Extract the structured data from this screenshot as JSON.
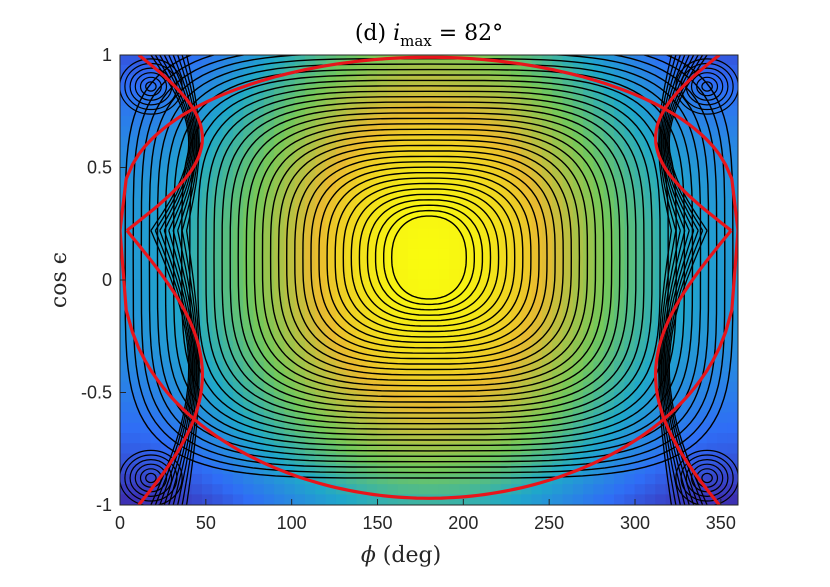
{
  "chart_data": {
    "type": "heatmap",
    "subtype": "contour",
    "title": "(d) i_max = 82°",
    "title_parts": {
      "prefix": "(d) ",
      "var": "i",
      "sub": "max",
      "suffix": " = 82°"
    },
    "xlabel": "ϕ (deg)",
    "xlabel_parts": {
      "symbol": "ϕ",
      "unit": " (deg)"
    },
    "ylabel": "cos ϵ",
    "xlim": [
      0,
      360
    ],
    "ylim": [
      -1,
      1
    ],
    "xticks": [
      0,
      50,
      100,
      150,
      200,
      250,
      300,
      350
    ],
    "yticks": [
      1,
      0.5,
      0,
      -0.5,
      -1
    ],
    "ytick_labels": [
      "1",
      "0.5",
      "0",
      "-0.5",
      "-1"
    ],
    "colormap": "parula",
    "colors": {
      "low": "#3e26a8",
      "mid_low": "#2f6df6",
      "mid": "#1fa8c9",
      "mid_high": "#74c85a",
      "high": "#e9ba30",
      "peak": "#f9fb0e",
      "contour_line": "#000000",
      "separatrix": "#e8151b"
    },
    "maximum": {
      "phi": 180,
      "cos_eps": 0.1
    },
    "separatrix": {
      "hyperbolic_points": [
        {
          "phi": 0,
          "cos_eps": 0.22
        },
        {
          "phi": 360,
          "cos_eps": 0.22
        }
      ],
      "lower_branch_min": {
        "phi": 180,
        "cos_eps": -0.97
      },
      "upper_branch_max": {
        "phi": 180,
        "cos_eps": 0.99
      }
    },
    "grid": false,
    "legend": "none"
  }
}
